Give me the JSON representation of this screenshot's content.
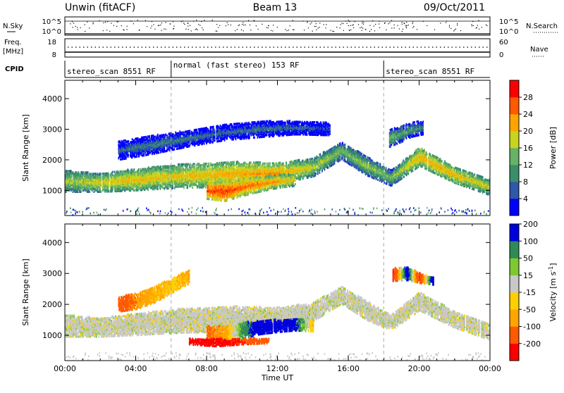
{
  "header": {
    "title": "Unwin (fitACF)",
    "beam": "Beam 13",
    "date": "09/Oct/2011"
  },
  "strips": {
    "nsky_label": "N.Sky",
    "nsky_ticks": [
      "10^5",
      "10^0"
    ],
    "nsearch_label": "N.Search",
    "freq_label_1": "Freq.",
    "freq_label_2": "[MHz]",
    "freq_ticks": [
      "18",
      "8"
    ],
    "nave_ticks": [
      "60",
      "0"
    ],
    "nave_label": "Nave",
    "cpid_label": "CPID",
    "cpid_segments": [
      {
        "label": "stereo_scan 8551 RF",
        "start": 0,
        "end": 6
      },
      {
        "label": "normal (fast stereo) 153 RF",
        "start": 6,
        "end": 18
      },
      {
        "label": "stereo_scan 8551 RF",
        "start": 18,
        "end": 24
      }
    ]
  },
  "chart_data": [
    {
      "type": "heatmap",
      "name": "power-panel",
      "ylabel": "Slant Range [km]",
      "xlim": [
        0,
        24
      ],
      "ylim": [
        180,
        4600
      ],
      "yticks": [
        "1000",
        "2000",
        "3000",
        "4000"
      ],
      "ytick_values": [
        1000,
        2000,
        3000,
        4000
      ],
      "colorbar_label": "Power [dB]",
      "colorbar_ticks": [
        "4",
        "8",
        "12",
        "16",
        "20",
        "24",
        "28"
      ],
      "colorbar_colors": [
        "#0000ff",
        "#2e58a8",
        "#3a8f6a",
        "#66b266",
        "#c8d41e",
        "#ffa500",
        "#ff5a00",
        "#ff0000"
      ],
      "colorbar_range": [
        0,
        30
      ],
      "mode_change_times": [
        6,
        18
      ],
      "bands": [
        {
          "t": [
            0,
            2,
            4,
            6,
            8,
            10,
            12,
            14,
            15.6,
            17,
            18.4,
            20,
            22,
            24
          ],
          "r": [
            1300,
            1250,
            1350,
            1450,
            1500,
            1550,
            1550,
            1750,
            2300,
            1800,
            1400,
            2100,
            1500,
            1100
          ],
          "w": [
            350,
            300,
            350,
            380,
            400,
            380,
            340,
            300,
            280,
            300,
            250,
            300,
            260,
            260
          ],
          "v": [
            16,
            18,
            20,
            19,
            20,
            21,
            22,
            17,
            14,
            15,
            14,
            21,
            20,
            17
          ]
        },
        {
          "t": [
            3,
            5,
            7,
            9,
            11,
            13,
            15
          ],
          "r": [
            2300,
            2500,
            2700,
            2900,
            3000,
            3050,
            3000
          ],
          "w": [
            300,
            300,
            260,
            260,
            260,
            220,
            200
          ],
          "v": [
            7,
            9,
            8,
            7,
            8,
            7,
            6
          ]
        },
        {
          "t": [
            8,
            9,
            10,
            11,
            12,
            13
          ],
          "r": [
            1000,
            950,
            1100,
            1200,
            1300,
            1350
          ],
          "w": [
            280,
            300,
            280,
            240,
            220,
            200
          ],
          "v": [
            25,
            27,
            24,
            23,
            21,
            19
          ]
        },
        {
          "t": [
            18.3,
            19,
            19.6,
            20.2
          ],
          "r": [
            2700,
            2850,
            3000,
            3050
          ],
          "w": [
            280,
            260,
            240,
            220
          ],
          "v": [
            14,
            12,
            11,
            9
          ]
        }
      ]
    },
    {
      "type": "heatmap",
      "name": "velocity-panel",
      "ylabel": "Slant Range [km]",
      "xlabel": "Time UT",
      "xlim": [
        0,
        24
      ],
      "ylim": [
        180,
        4600
      ],
      "xticks": [
        "00:00",
        "04:00",
        "08:00",
        "12:00",
        "16:00",
        "20:00",
        "00:00"
      ],
      "xtick_values": [
        0,
        4,
        8,
        12,
        16,
        20,
        24
      ],
      "yticks": [
        "1000",
        "2000",
        "3000",
        "4000"
      ],
      "ytick_values": [
        1000,
        2000,
        3000,
        4000
      ],
      "colorbar_label": "Velocity [m s",
      "colorbar_label_sup": "-1",
      "colorbar_ticks": [
        "-200",
        "-100",
        "-50",
        "-15",
        "15",
        "50",
        "100",
        "200"
      ],
      "colorbar_colors": [
        "#ff0000",
        "#ff5a00",
        "#ffa500",
        "#ffd000",
        "#c8c8c8",
        "#7ec832",
        "#2e8b57",
        "#0000dd"
      ],
      "colorbar_levels": [
        -250,
        -200,
        -100,
        -50,
        -15,
        15,
        50,
        100,
        200
      ],
      "mode_change_times": [
        6,
        18
      ],
      "bands": [
        {
          "t": [
            0,
            2,
            4,
            6,
            8,
            10,
            12,
            14,
            15.6,
            17,
            18.4,
            20,
            22,
            24
          ],
          "r": [
            1300,
            1250,
            1350,
            1450,
            1500,
            1550,
            1550,
            1750,
            2300,
            1800,
            1400,
            2100,
            1500,
            1100
          ],
          "w": [
            350,
            300,
            350,
            380,
            400,
            380,
            340,
            300,
            280,
            300,
            250,
            300,
            260,
            260
          ],
          "v": [
            0,
            0,
            0,
            0,
            0,
            0,
            0,
            0,
            0,
            0,
            0,
            0,
            0,
            0
          ]
        },
        {
          "t": [
            3,
            4,
            5,
            6,
            7
          ],
          "r": [
            2000,
            2100,
            2300,
            2600,
            2900
          ],
          "w": [
            240,
            260,
            260,
            240,
            220
          ],
          "v": [
            -150,
            -90,
            -60,
            -40,
            -60
          ]
        },
        {
          "t": [
            8,
            9,
            10,
            11,
            12,
            13,
            14
          ],
          "r": [
            1050,
            1000,
            1150,
            1250,
            1300,
            1350,
            1300
          ],
          "w": [
            260,
            280,
            260,
            220,
            200,
            200,
            180
          ],
          "v": [
            -110,
            -80,
            60,
            150,
            180,
            120,
            -50
          ]
        },
        {
          "t": [
            7,
            8.5,
            10,
            11.5
          ],
          "r": [
            800,
            760,
            800,
            820
          ],
          "w": [
            100,
            120,
            100,
            80
          ],
          "v": [
            -220,
            -230,
            -200,
            -120
          ]
        },
        {
          "t": [
            18.5,
            19.3,
            20,
            20.8
          ],
          "r": [
            2950,
            3000,
            2850,
            2750
          ],
          "w": [
            200,
            220,
            160,
            120
          ],
          "v": [
            -220,
            160,
            -200,
            200
          ]
        }
      ]
    }
  ]
}
